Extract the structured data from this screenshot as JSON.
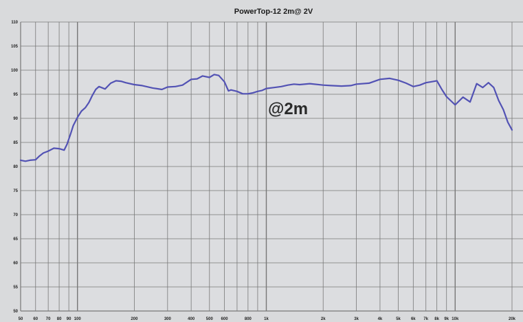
{
  "chart_data": {
    "type": "line",
    "title": "PowerTop-12   2m@ 2V",
    "annotation": "@2m",
    "xlabel": "",
    "ylabel": "",
    "x_scale": "log",
    "xlim": [
      50,
      20000
    ],
    "ylim": [
      50,
      110
    ],
    "grid": true,
    "y_ticks": [
      50,
      55,
      60,
      65,
      70,
      75,
      80,
      85,
      90,
      95,
      100,
      105,
      110
    ],
    "x_tick_values": [
      50,
      60,
      70,
      80,
      90,
      100,
      200,
      300,
      400,
      500,
      600,
      800,
      1000,
      2000,
      3000,
      4000,
      5000,
      6000,
      7000,
      8000,
      9000,
      10000,
      20000
    ],
    "x_tick_labels": [
      "50",
      "60",
      "70",
      "80",
      "90",
      "100",
      "200",
      "300",
      "400",
      "500",
      "600",
      "800",
      "1k",
      "2k",
      "3k",
      "4k",
      "5k",
      "6k",
      "7k",
      "8k",
      "9k",
      "10k",
      "20k"
    ],
    "line_color": "#5252b4",
    "grid_color": "#777777",
    "series": [
      {
        "x": [
          50,
          53,
          56,
          60,
          63,
          66,
          70,
          75,
          80,
          85,
          88,
          92,
          95,
          100,
          105,
          110,
          115,
          120,
          125,
          130,
          140,
          150,
          160,
          170,
          180,
          200,
          220,
          250,
          280,
          300,
          330,
          360,
          400,
          430,
          460,
          500,
          530,
          560,
          600,
          630,
          650,
          700,
          750,
          800,
          850,
          900,
          950,
          1000,
          1100,
          1200,
          1300,
          1400,
          1500,
          1700,
          2000,
          2200,
          2500,
          2800,
          3000,
          3500,
          4000,
          4500,
          5000,
          5500,
          6000,
          6500,
          7000,
          7500,
          8000,
          8500,
          9000,
          10000,
          11000,
          12000,
          13000,
          14000,
          15000,
          16000,
          17000,
          18000,
          19000,
          20000
        ],
        "y": [
          81.3,
          81.1,
          81.3,
          81.4,
          82.2,
          82.8,
          83.2,
          83.8,
          83.7,
          83.4,
          84.6,
          86.8,
          88.5,
          90.2,
          91.5,
          92.2,
          93.3,
          94.8,
          96.0,
          96.6,
          96.1,
          97.3,
          97.8,
          97.7,
          97.4,
          97.0,
          96.8,
          96.3,
          96.0,
          96.5,
          96.6,
          96.9,
          98.1,
          98.2,
          98.8,
          98.5,
          99.1,
          98.9,
          97.6,
          95.7,
          95.9,
          95.6,
          95.1,
          95.1,
          95.3,
          95.6,
          95.8,
          96.2,
          96.4,
          96.6,
          96.9,
          97.1,
          97.0,
          97.2,
          96.9,
          96.8,
          96.7,
          96.8,
          97.1,
          97.3,
          98.1,
          98.3,
          97.9,
          97.3,
          96.6,
          96.9,
          97.4,
          97.6,
          97.8,
          96.0,
          94.5,
          92.8,
          94.4,
          93.4,
          97.2,
          96.4,
          97.4,
          96.4,
          93.7,
          91.8,
          89.2,
          87.6
        ]
      }
    ]
  }
}
